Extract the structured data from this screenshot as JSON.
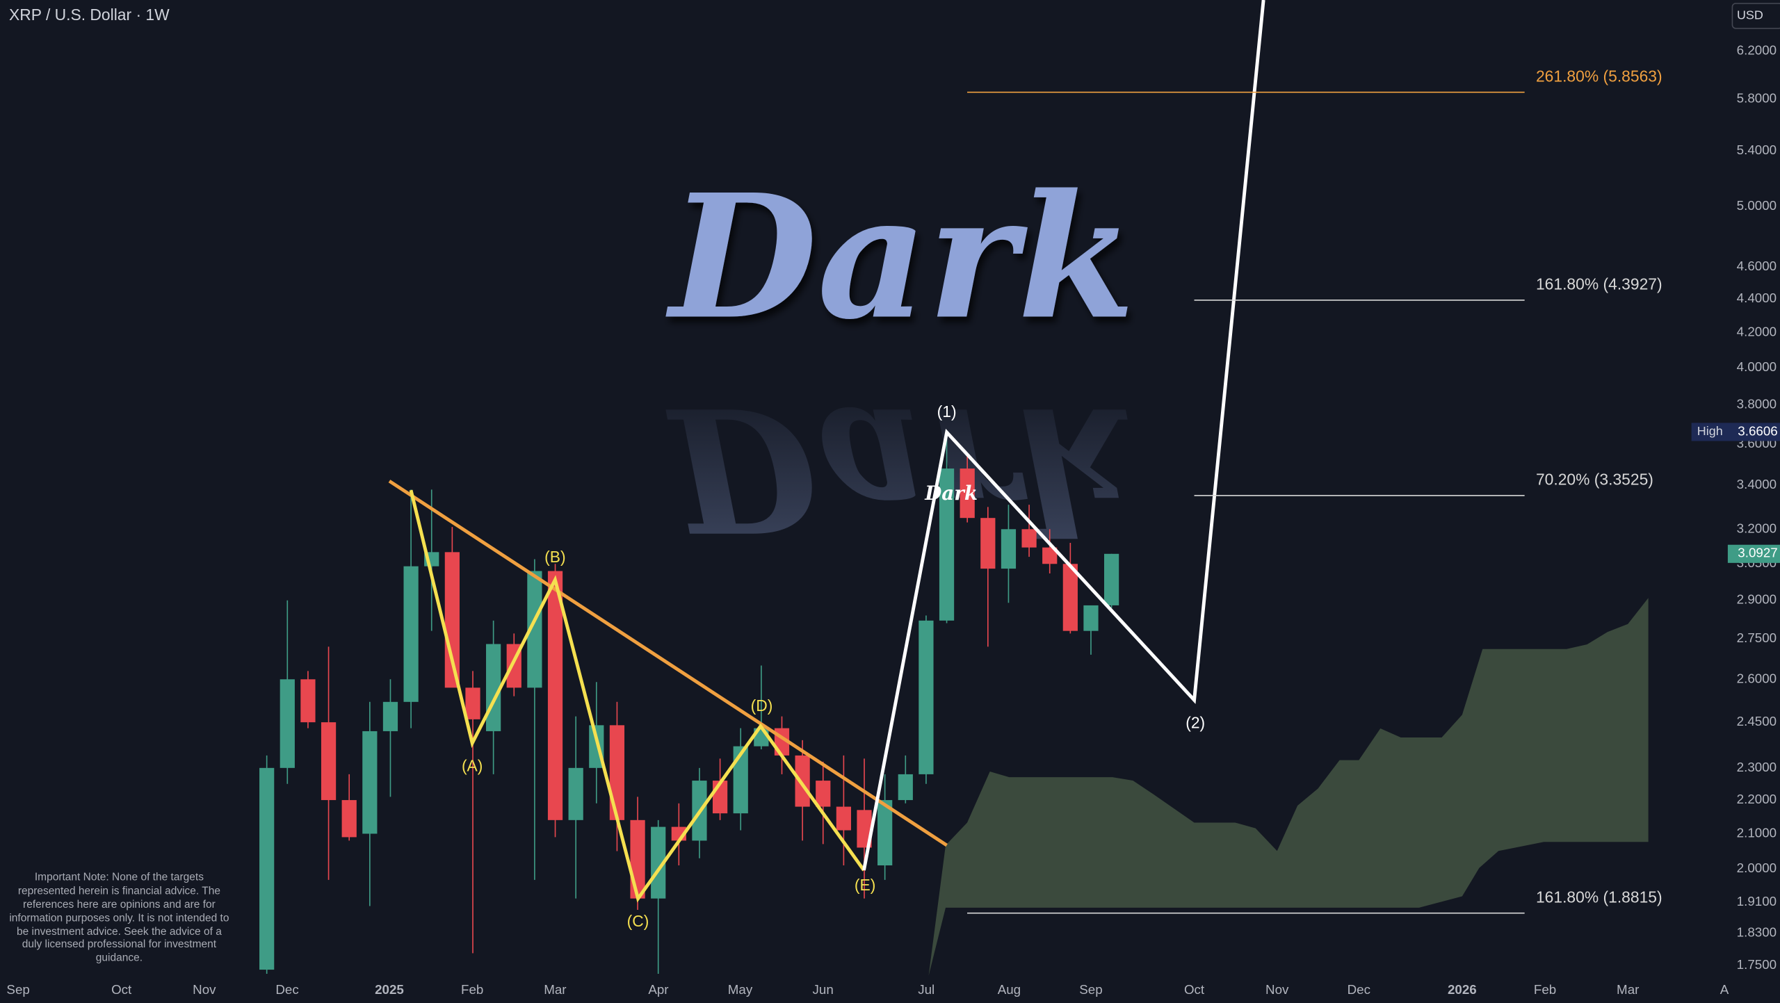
{
  "header": {
    "title": "XRP / U.S. Dollar · 1W",
    "currency_button": "USD"
  },
  "chart_data": {
    "type": "candlestick",
    "log_scale": true,
    "grid": false,
    "ylim": [
      1.72,
      6.653
    ],
    "yticks": [
      {
        "value": 6.2,
        "label": "6.2000"
      },
      {
        "value": 5.8,
        "label": "5.8000"
      },
      {
        "value": 5.4,
        "label": "5.4000"
      },
      {
        "value": 5.0,
        "label": "5.0000"
      },
      {
        "value": 4.6,
        "label": "4.6000"
      },
      {
        "value": 4.4,
        "label": "4.4000"
      },
      {
        "value": 4.2,
        "label": "4.2000"
      },
      {
        "value": 4.0,
        "label": "4.0000"
      },
      {
        "value": 3.8,
        "label": "3.8000"
      },
      {
        "value": 3.6,
        "label": "3.6000"
      },
      {
        "value": 3.4,
        "label": "3.4000"
      },
      {
        "value": 3.2,
        "label": "3.2000"
      },
      {
        "value": 3.05,
        "label": "3.0500"
      },
      {
        "value": 2.9,
        "label": "2.9000"
      },
      {
        "value": 2.75,
        "label": "2.7500"
      },
      {
        "value": 2.6,
        "label": "2.6000"
      },
      {
        "value": 2.45,
        "label": "2.4500"
      },
      {
        "value": 2.3,
        "label": "2.3000"
      },
      {
        "value": 2.2,
        "label": "2.2000"
      },
      {
        "value": 2.1,
        "label": "2.1000"
      },
      {
        "value": 2.0,
        "label": "2.0000"
      },
      {
        "value": 1.91,
        "label": "1.9100"
      },
      {
        "value": 1.83,
        "label": "1.8300"
      },
      {
        "value": 1.75,
        "label": "1.7500"
      }
    ],
    "x_labels": [
      "Sep",
      "Oct",
      "Nov",
      "Dec",
      "2025",
      "Feb",
      "Mar",
      "Apr",
      "May",
      "Jun",
      "Jul",
      "Aug",
      "Sep",
      "Oct",
      "Nov",
      "Dec",
      "2026",
      "Feb",
      "Mar",
      "A"
    ],
    "open": [
      1.74,
      2.3,
      2.6,
      2.45,
      2.2,
      2.1,
      2.42,
      2.52,
      3.04,
      3.1,
      2.57,
      2.42,
      2.73,
      2.57,
      3.02,
      2.14,
      2.3,
      2.44,
      2.14,
      1.92,
      2.12,
      2.08,
      2.26,
      2.16,
      2.37,
      2.43,
      2.34,
      2.26,
      2.18,
      2.17,
      2.01,
      2.2,
      2.28,
      2.82,
      3.48,
      3.25,
      3.03,
      3.2,
      3.12,
      3.05,
      2.78,
      2.88
    ],
    "high": [
      2.34,
      2.9,
      2.63,
      2.72,
      2.28,
      2.52,
      2.6,
      3.38,
      3.38,
      3.21,
      2.63,
      2.82,
      2.77,
      3.07,
      3.05,
      2.47,
      2.59,
      2.52,
      2.21,
      2.14,
      2.19,
      2.3,
      2.33,
      2.43,
      2.65,
      2.47,
      2.39,
      2.32,
      2.34,
      2.33,
      2.28,
      2.34,
      2.84,
      3.6606,
      3.55,
      3.3,
      3.31,
      3.31,
      3.2,
      3.14,
      2.85,
      3.0927
    ],
    "low": [
      1.73,
      2.25,
      2.43,
      1.97,
      2.08,
      1.9,
      2.21,
      2.43,
      2.78,
      2.58,
      1.78,
      2.28,
      2.54,
      1.97,
      2.09,
      1.92,
      2.19,
      2.05,
      1.89,
      1.73,
      2.01,
      2.03,
      2.14,
      2.11,
      2.36,
      2.28,
      2.08,
      2.07,
      2.01,
      1.92,
      1.97,
      2.19,
      2.25,
      2.81,
      3.23,
      2.72,
      2.89,
      3.08,
      3.01,
      2.77,
      2.69,
      2.87
    ],
    "close": [
      2.3,
      2.6,
      2.45,
      2.2,
      2.09,
      2.42,
      2.52,
      3.04,
      3.1,
      2.57,
      2.46,
      2.73,
      2.57,
      3.02,
      2.14,
      2.3,
      2.44,
      2.14,
      1.92,
      2.12,
      2.08,
      2.26,
      2.16,
      2.37,
      2.43,
      2.34,
      2.18,
      2.18,
      2.11,
      2.06,
      2.2,
      2.28,
      2.82,
      3.48,
      3.25,
      3.03,
      3.2,
      3.12,
      3.05,
      2.78,
      2.88,
      3.0927
    ],
    "up_color": "#3f9c86",
    "down_color": "#e8474f",
    "high_label": "High",
    "fib_levels": [
      {
        "label": "261.80% (5.8563)",
        "value": 5.8563,
        "color": "#f0a040"
      },
      {
        "label": "161.80% (4.3927)",
        "value": 4.3927,
        "color": "#d8d8d8"
      },
      {
        "label": "70.20% (3.3525)",
        "value": 3.3525,
        "color": "#d8d8d8"
      },
      {
        "label": "161.80% (1.8815)",
        "value": 1.8815,
        "color": "#d8d8d8"
      }
    ],
    "wave_labels": [
      "(A)",
      "(B)",
      "(C)",
      "(D)",
      "(E)"
    ],
    "impulse_labels": [
      "(1)",
      "(2)"
    ],
    "watermark": "Dark",
    "note": "Important Note: None of the targets represented herein is financial advice. The references here are opinions and are for information purposes only. It is not intended to be investment advice. Seek the advice of a duly licensed professional for investment guidance."
  }
}
